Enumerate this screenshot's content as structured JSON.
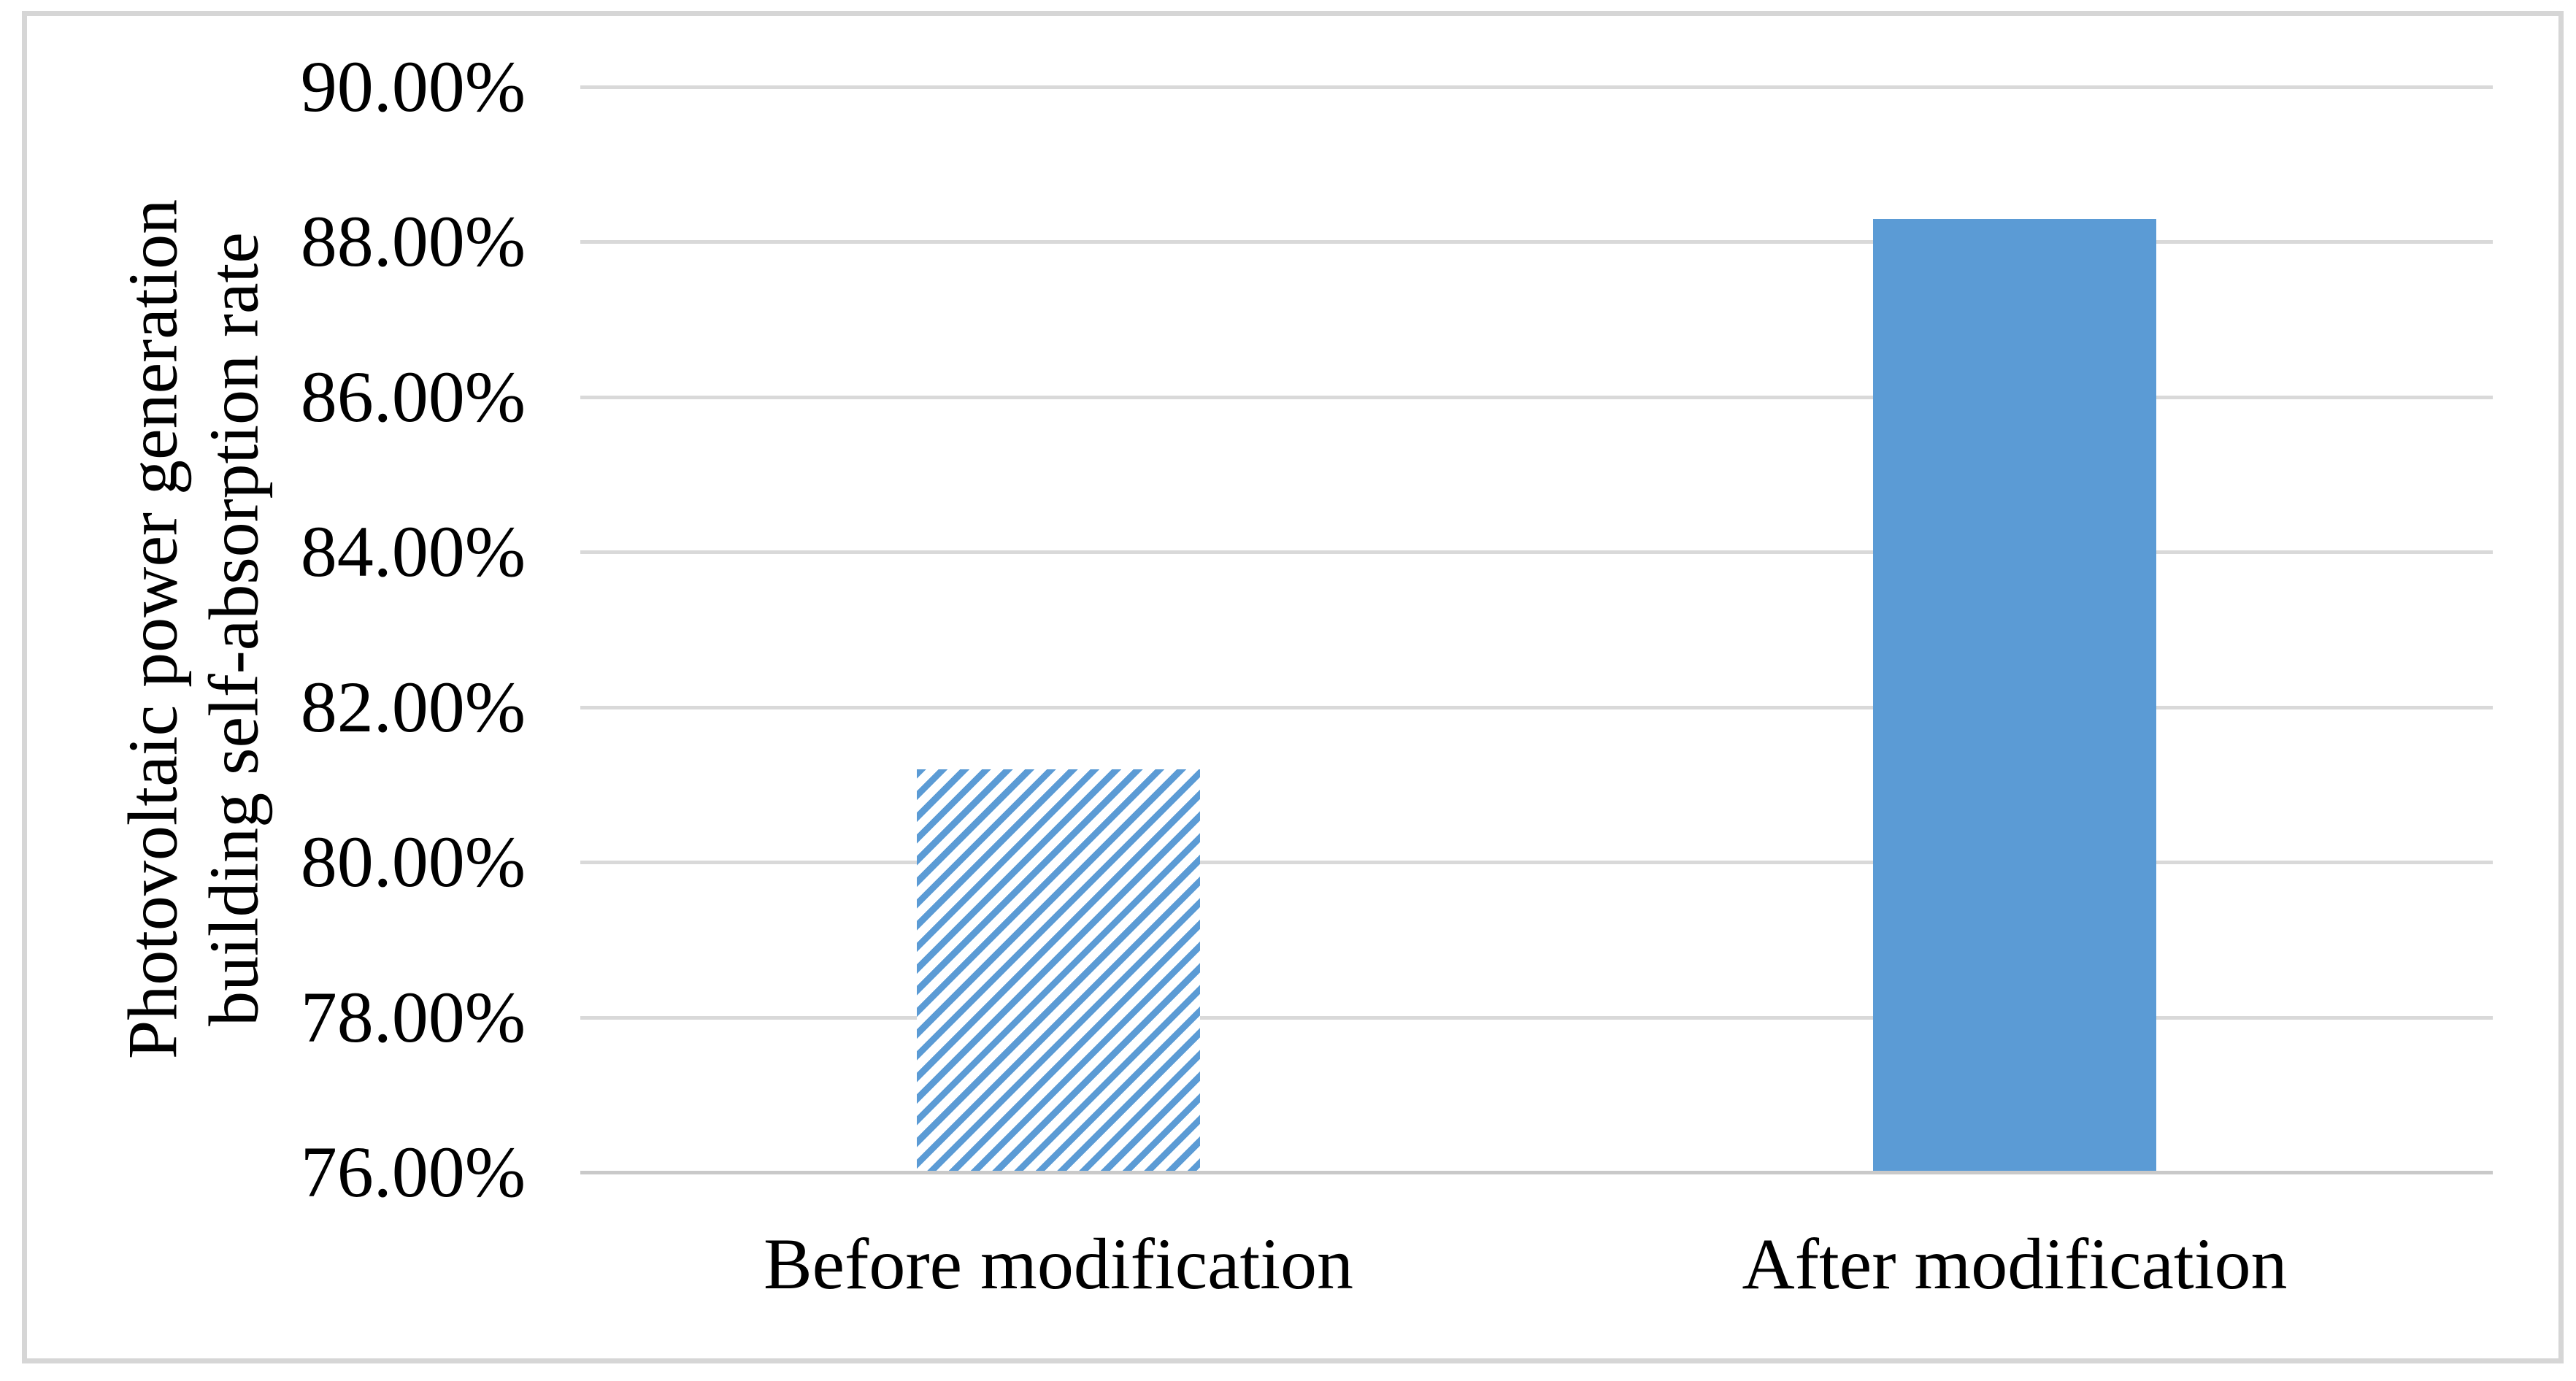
{
  "figure": {
    "background": "#ffffff",
    "border_color": "#d6d6d6"
  },
  "chart_data": {
    "type": "bar",
    "title": "",
    "categories": [
      "Before modification",
      "After modification"
    ],
    "values": [
      81.2,
      88.3
    ],
    "unit": "%",
    "ylabel": "Photovoltaic power generation building self-absorption rate",
    "ylabel_lines": [
      "Photovoltaic power generation",
      "building self-absorption rate"
    ],
    "xlabel": "",
    "ylim": [
      76,
      90
    ],
    "ytick_step": 2,
    "yticks": [
      "90.00%",
      "88.00%",
      "86.00%",
      "84.00%",
      "82.00%",
      "80.00%",
      "78.00%",
      "76.00%"
    ],
    "grid": true,
    "legend": "none",
    "bar_fill": [
      "diagonal-hatch",
      "solid"
    ],
    "bar_color": "#5b9bd5",
    "hatch_background": "#ffffff",
    "gridline_color": "#d9d9d9",
    "axisline_color": "#c9c9c9",
    "text_color": "#000000"
  }
}
